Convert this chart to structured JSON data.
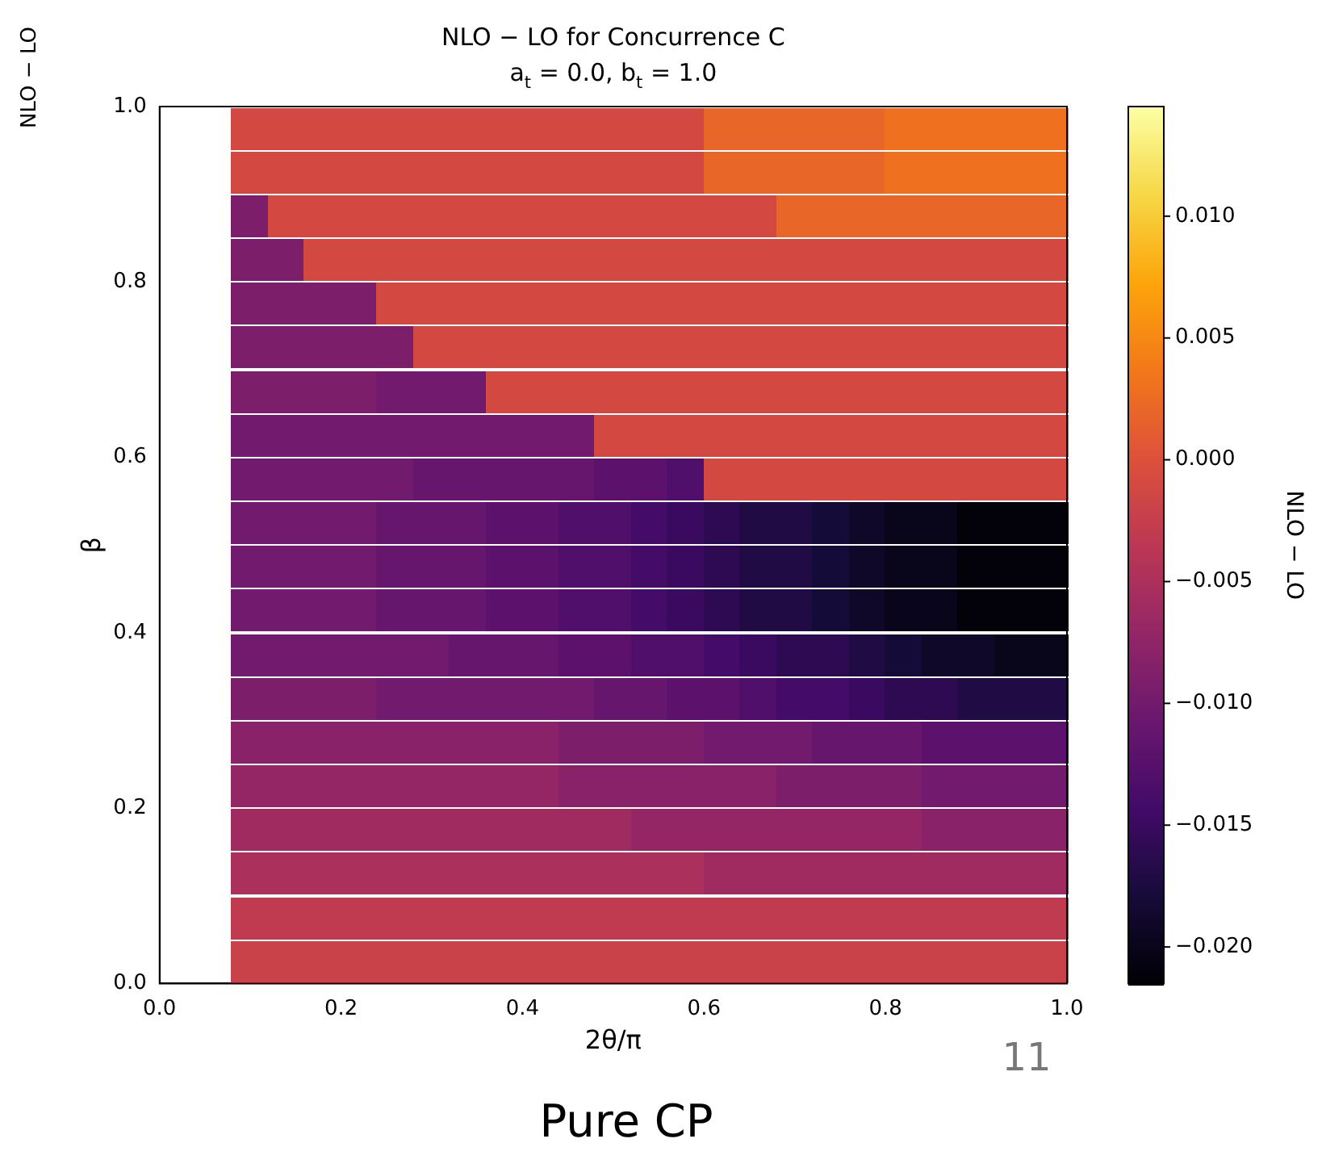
{
  "chart_data": {
    "type": "heatmap",
    "title": "NLO − LO for Concurrence C",
    "subtitle": "a$_{t}$ = 0.0, b$_{t}$ = 1.0",
    "xlabel": "2θ/π",
    "ylabel": "β",
    "clabel": "NLO − LO",
    "annotations": [
      "NLO − LO",
      "11",
      "Pure CP"
    ],
    "x": [
      0.1,
      0.14,
      0.18,
      0.22,
      0.26,
      0.3,
      0.34,
      0.38,
      0.42,
      0.46,
      0.5,
      0.54,
      0.58,
      0.62,
      0.66,
      0.7,
      0.74,
      0.78,
      0.82,
      0.86,
      0.9,
      0.94,
      0.98
    ],
    "y": [
      0.975,
      0.925,
      0.875,
      0.825,
      0.775,
      0.725,
      0.675,
      0.625,
      0.575,
      0.525,
      0.475,
      0.425,
      0.375,
      0.325,
      0.275,
      0.225,
      0.175,
      0.125,
      0.075,
      0.025
    ],
    "xlim": [
      0,
      1
    ],
    "ylim": [
      0,
      1
    ],
    "xticks": [
      {
        "value": 0,
        "label": "0.0"
      },
      {
        "value": 0.2,
        "label": "0.2"
      },
      {
        "value": 0.4,
        "label": "0.4"
      },
      {
        "value": 0.6,
        "label": "0.6"
      },
      {
        "value": 0.8,
        "label": "0.8"
      },
      {
        "value": 1,
        "label": "1.0"
      }
    ],
    "yticks": [
      {
        "value": 0,
        "label": "0.0"
      },
      {
        "value": 0.2,
        "label": "0.2"
      },
      {
        "value": 0.4,
        "label": "0.4"
      },
      {
        "value": 0.6,
        "label": "0.6"
      },
      {
        "value": 0.8,
        "label": "0.8"
      },
      {
        "value": 1,
        "label": "1.0"
      }
    ],
    "clim": [
      -0.0215,
      0.0145
    ],
    "cticks": [
      {
        "value": -0.02,
        "label": "−0.020"
      },
      {
        "value": -0.015,
        "label": "−0.015"
      },
      {
        "value": -0.01,
        "label": "−0.010"
      },
      {
        "value": -0.005,
        "label": "−0.005"
      },
      {
        "value": 0,
        "label": "0.000"
      },
      {
        "value": 0.005,
        "label": "0.005"
      },
      {
        "value": 0.01,
        "label": "0.010"
      }
    ],
    "grid": false,
    "cells": [
      [
        -0.001,
        -0.001,
        -0.001,
        -0.001,
        -0.001,
        -0.001,
        -0.001,
        -0.001,
        -0.001,
        -0.001,
        -0.001,
        -0.001,
        -0.001,
        0.002,
        0.002,
        0.002,
        0.002,
        0.002,
        0.003,
        0.003,
        0.003,
        0.003,
        0.003
      ],
      [
        -0.001,
        -0.001,
        -0.001,
        -0.001,
        -0.001,
        -0.001,
        -0.001,
        -0.001,
        -0.001,
        -0.001,
        -0.001,
        -0.001,
        -0.001,
        0.002,
        0.002,
        0.002,
        0.002,
        0.002,
        0.003,
        0.003,
        0.003,
        0.003,
        0.003
      ],
      [
        -0.009,
        -0.001,
        -0.001,
        -0.001,
        -0.001,
        -0.001,
        -0.001,
        -0.001,
        -0.001,
        -0.001,
        -0.001,
        -0.001,
        -0.001,
        -0.001,
        -0.001,
        0.002,
        0.002,
        0.002,
        0.002,
        0.002,
        0.002,
        0.002,
        0.002
      ],
      [
        -0.009,
        -0.009,
        -0.001,
        -0.001,
        -0.001,
        -0.001,
        -0.001,
        -0.001,
        -0.001,
        -0.001,
        -0.001,
        -0.001,
        -0.001,
        -0.001,
        -0.001,
        -0.001,
        -0.001,
        -0.001,
        -0.001,
        -0.001,
        -0.001,
        -0.001,
        -0.001
      ],
      [
        -0.009,
        -0.009,
        -0.009,
        -0.009,
        -0.001,
        -0.001,
        -0.001,
        -0.001,
        -0.001,
        -0.001,
        -0.001,
        -0.001,
        -0.001,
        -0.001,
        -0.001,
        -0.001,
        -0.001,
        -0.001,
        -0.001,
        -0.001,
        -0.001,
        -0.001,
        -0.001
      ],
      [
        -0.009,
        -0.009,
        -0.009,
        -0.009,
        -0.009,
        -0.001,
        -0.001,
        -0.001,
        -0.001,
        -0.001,
        -0.001,
        -0.001,
        -0.001,
        -0.001,
        -0.001,
        -0.001,
        -0.001,
        -0.001,
        -0.001,
        -0.001,
        -0.001,
        -0.001,
        -0.001
      ],
      [
        -0.009,
        -0.009,
        -0.009,
        -0.009,
        -0.01,
        -0.01,
        -0.01,
        -0.001,
        -0.001,
        -0.001,
        -0.001,
        -0.001,
        -0.001,
        -0.001,
        -0.001,
        -0.001,
        -0.001,
        -0.001,
        -0.001,
        -0.001,
        -0.001,
        -0.001,
        -0.001
      ],
      [
        -0.01,
        -0.01,
        -0.01,
        -0.01,
        -0.01,
        -0.01,
        -0.01,
        -0.01,
        -0.01,
        -0.01,
        -0.001,
        -0.001,
        -0.001,
        -0.001,
        -0.001,
        -0.001,
        -0.001,
        -0.001,
        -0.001,
        -0.001,
        -0.001,
        -0.001,
        -0.001
      ],
      [
        -0.01,
        -0.01,
        -0.01,
        -0.01,
        -0.01,
        -0.011,
        -0.011,
        -0.011,
        -0.011,
        -0.011,
        -0.012,
        -0.012,
        -0.013,
        -0.001,
        -0.001,
        -0.001,
        -0.001,
        -0.001,
        -0.001,
        -0.001,
        -0.001,
        -0.001,
        -0.001
      ],
      [
        -0.01,
        -0.01,
        -0.01,
        -0.01,
        -0.011,
        -0.011,
        -0.011,
        -0.012,
        -0.012,
        -0.013,
        -0.013,
        -0.014,
        -0.015,
        -0.016,
        -0.017,
        -0.017,
        -0.018,
        -0.019,
        -0.02,
        -0.02,
        -0.021,
        -0.021,
        -0.021
      ],
      [
        -0.01,
        -0.01,
        -0.01,
        -0.01,
        -0.011,
        -0.011,
        -0.011,
        -0.012,
        -0.012,
        -0.013,
        -0.013,
        -0.014,
        -0.015,
        -0.016,
        -0.017,
        -0.017,
        -0.018,
        -0.019,
        -0.02,
        -0.02,
        -0.021,
        -0.021,
        -0.021
      ],
      [
        -0.01,
        -0.01,
        -0.01,
        -0.01,
        -0.011,
        -0.011,
        -0.011,
        -0.012,
        -0.012,
        -0.013,
        -0.013,
        -0.014,
        -0.015,
        -0.016,
        -0.017,
        -0.017,
        -0.018,
        -0.019,
        -0.02,
        -0.02,
        -0.021,
        -0.021,
        -0.021
      ],
      [
        -0.01,
        -0.01,
        -0.01,
        -0.01,
        -0.01,
        -0.01,
        -0.011,
        -0.011,
        -0.011,
        -0.012,
        -0.012,
        -0.013,
        -0.013,
        -0.014,
        -0.015,
        -0.016,
        -0.016,
        -0.017,
        -0.018,
        -0.019,
        -0.019,
        -0.02,
        -0.02
      ],
      [
        -0.009,
        -0.009,
        -0.009,
        -0.009,
        -0.01,
        -0.01,
        -0.01,
        -0.01,
        -0.01,
        -0.01,
        -0.011,
        -0.011,
        -0.012,
        -0.012,
        -0.013,
        -0.014,
        -0.014,
        -0.015,
        -0.016,
        -0.016,
        -0.017,
        -0.017,
        -0.017
      ],
      [
        -0.008,
        -0.008,
        -0.008,
        -0.008,
        -0.008,
        -0.008,
        -0.008,
        -0.008,
        -0.008,
        -0.009,
        -0.009,
        -0.009,
        -0.009,
        -0.01,
        -0.01,
        -0.01,
        -0.011,
        -0.011,
        -0.011,
        -0.012,
        -0.012,
        -0.012,
        -0.012
      ],
      [
        -0.007,
        -0.007,
        -0.007,
        -0.007,
        -0.007,
        -0.007,
        -0.007,
        -0.007,
        -0.007,
        -0.008,
        -0.008,
        -0.008,
        -0.008,
        -0.008,
        -0.008,
        -0.009,
        -0.009,
        -0.009,
        -0.009,
        -0.01,
        -0.01,
        -0.01,
        -0.01
      ],
      [
        -0.006,
        -0.006,
        -0.006,
        -0.006,
        -0.006,
        -0.006,
        -0.006,
        -0.006,
        -0.006,
        -0.006,
        -0.006,
        -0.007,
        -0.007,
        -0.007,
        -0.007,
        -0.007,
        -0.007,
        -0.007,
        -0.007,
        -0.008,
        -0.008,
        -0.008,
        -0.008
      ],
      [
        -0.005,
        -0.005,
        -0.005,
        -0.005,
        -0.005,
        -0.005,
        -0.005,
        -0.005,
        -0.005,
        -0.005,
        -0.005,
        -0.005,
        -0.005,
        -0.006,
        -0.006,
        -0.006,
        -0.006,
        -0.006,
        -0.006,
        -0.006,
        -0.006,
        -0.006,
        -0.006
      ],
      [
        -0.003,
        -0.003,
        -0.003,
        -0.003,
        -0.003,
        -0.003,
        -0.003,
        -0.003,
        -0.003,
        -0.003,
        -0.003,
        -0.003,
        -0.003,
        -0.003,
        -0.003,
        -0.003,
        -0.003,
        -0.003,
        -0.003,
        -0.003,
        -0.003,
        -0.003,
        -0.003
      ],
      [
        -0.002,
        -0.002,
        -0.002,
        -0.002,
        -0.002,
        -0.002,
        -0.002,
        -0.002,
        -0.002,
        -0.002,
        -0.002,
        -0.002,
        -0.002,
        -0.002,
        -0.002,
        -0.002,
        -0.002,
        -0.002,
        -0.002,
        -0.002,
        -0.002,
        -0.002,
        -0.002
      ]
    ]
  }
}
